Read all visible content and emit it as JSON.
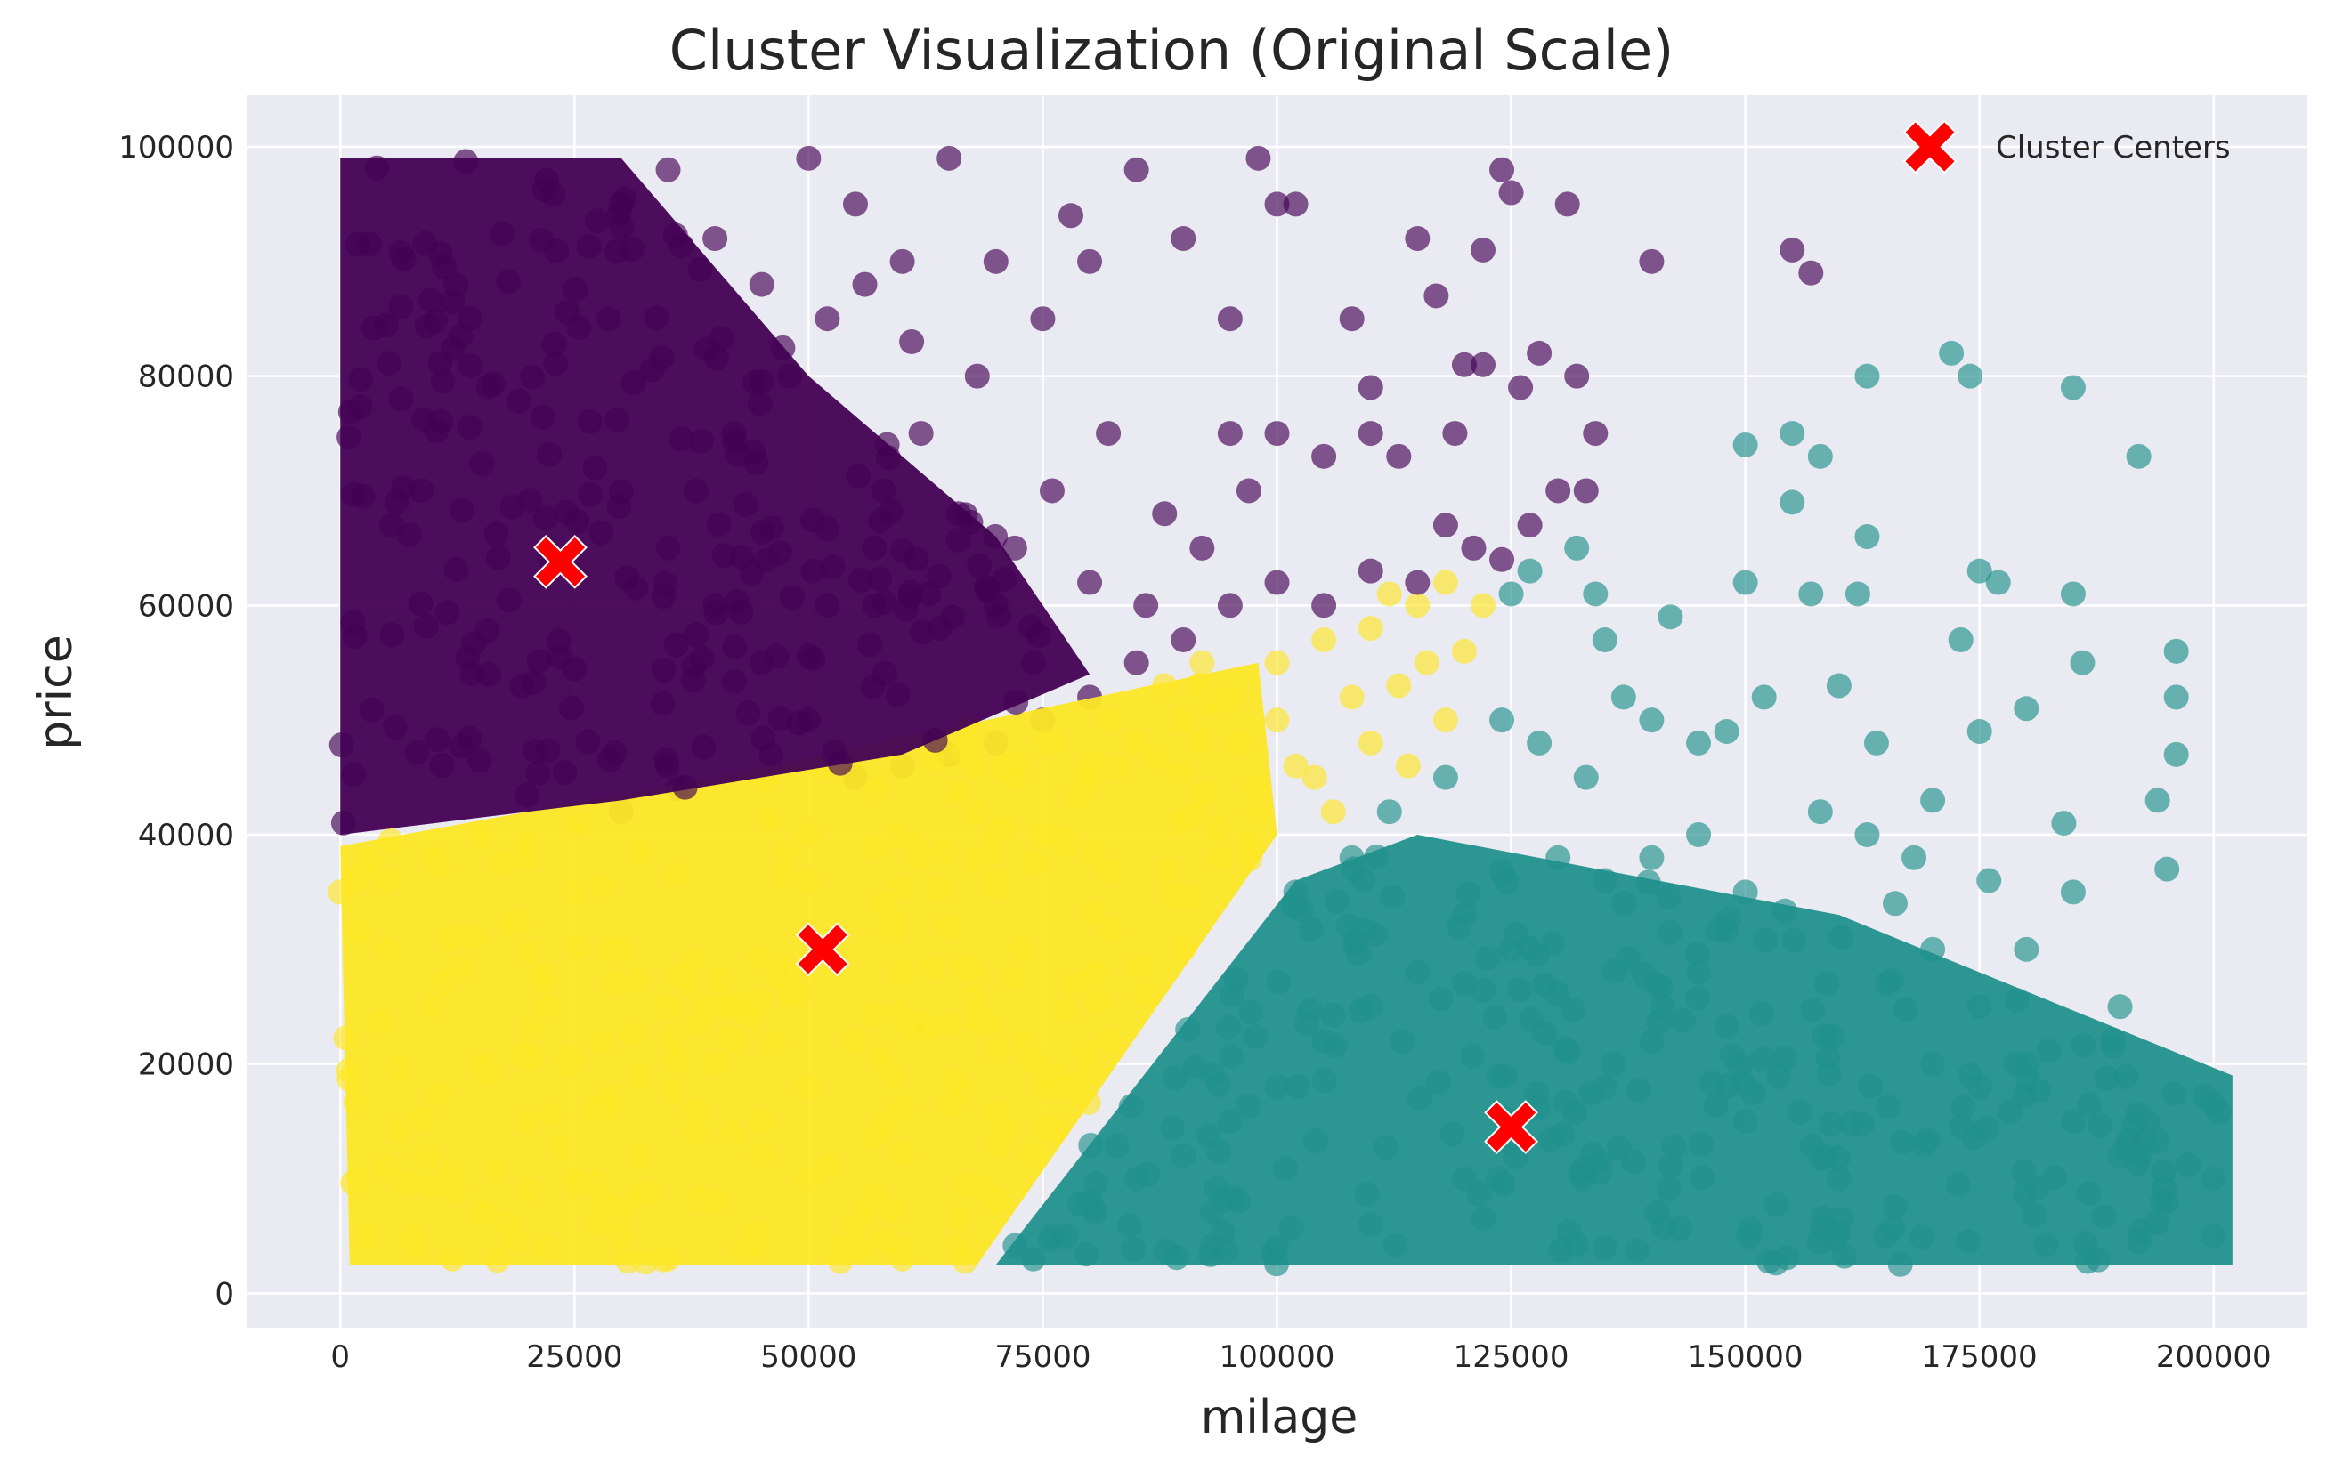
{
  "chart_data": {
    "type": "scatter",
    "title": "Cluster Visualization (Original Scale)",
    "xlabel": "milage",
    "ylabel": "price",
    "xlim": [
      -10000,
      210000
    ],
    "ylim": [
      -3000,
      104500
    ],
    "xticks": [
      0,
      25000,
      50000,
      75000,
      100000,
      125000,
      150000,
      175000,
      200000
    ],
    "yticks": [
      0,
      20000,
      40000,
      60000,
      80000,
      100000
    ],
    "grid": true,
    "legend": {
      "position": "top-right",
      "entries": [
        "Cluster Centers"
      ]
    },
    "colors": {
      "background": "#eaeaf2",
      "grid": "#ffffff",
      "cluster_0": "#440154",
      "cluster_1": "#21918c",
      "cluster_2": "#fde725",
      "centers": "#ff0000"
    },
    "centers": [
      {
        "x": 23500,
        "y": 63800
      },
      {
        "x": 51500,
        "y": 30000
      },
      {
        "x": 125000,
        "y": 14500
      }
    ],
    "series": [
      {
        "cluster": 0,
        "color": "#440154",
        "description": "dense region mileage 0–35000, price 40000–99000, sparser to ~135000",
        "points": [
          [
            30000,
            95000
          ],
          [
            35000,
            98000
          ],
          [
            40000,
            92000
          ],
          [
            45000,
            88000
          ],
          [
            50000,
            99000
          ],
          [
            55000,
            95000
          ],
          [
            60000,
            90000
          ],
          [
            65000,
            99000
          ],
          [
            70000,
            90000
          ],
          [
            75000,
            85000
          ],
          [
            78000,
            94000
          ],
          [
            80000,
            90000
          ],
          [
            85000,
            98000
          ],
          [
            90000,
            92000
          ],
          [
            95000,
            85000
          ],
          [
            98000,
            99000
          ],
          [
            100000,
            95000
          ],
          [
            102000,
            95000
          ],
          [
            108000,
            85000
          ],
          [
            115000,
            92000
          ],
          [
            117000,
            87000
          ],
          [
            122000,
            91000
          ],
          [
            124000,
            98000
          ],
          [
            125000,
            96000
          ],
          [
            131000,
            95000
          ],
          [
            140000,
            90000
          ],
          [
            155000,
            91000
          ],
          [
            157000,
            89000
          ],
          [
            110000,
            79000
          ],
          [
            120000,
            81000
          ],
          [
            126000,
            79000
          ],
          [
            128000,
            82000
          ],
          [
            132000,
            80000
          ],
          [
            134000,
            75000
          ],
          [
            119000,
            75000
          ],
          [
            122000,
            81000
          ],
          [
            110000,
            75000
          ],
          [
            105000,
            73000
          ],
          [
            100000,
            75000
          ],
          [
            95000,
            75000
          ],
          [
            113000,
            73000
          ],
          [
            118000,
            67000
          ],
          [
            121000,
            65000
          ],
          [
            124000,
            64000
          ],
          [
            127000,
            67000
          ],
          [
            130000,
            70000
          ],
          [
            133000,
            70000
          ],
          [
            115000,
            62000
          ],
          [
            110000,
            63000
          ],
          [
            105000,
            60000
          ],
          [
            100000,
            62000
          ],
          [
            95000,
            60000
          ],
          [
            90000,
            57000
          ],
          [
            85000,
            55000
          ],
          [
            80000,
            52000
          ],
          [
            75000,
            50000
          ],
          [
            70000,
            48000
          ],
          [
            65000,
            47000
          ],
          [
            60000,
            46000
          ],
          [
            55000,
            45000
          ],
          [
            45000,
            55000
          ],
          [
            40000,
            60000
          ],
          [
            35000,
            65000
          ],
          [
            38000,
            70000
          ],
          [
            42000,
            75000
          ],
          [
            48000,
            80000
          ],
          [
            52000,
            85000
          ],
          [
            58000,
            70000
          ],
          [
            62000,
            75000
          ],
          [
            68000,
            80000
          ],
          [
            72000,
            65000
          ],
          [
            76000,
            70000
          ],
          [
            82000,
            75000
          ],
          [
            88000,
            68000
          ],
          [
            92000,
            65000
          ],
          [
            97000,
            70000
          ],
          [
            50000,
            50000
          ],
          [
            46000,
            47000
          ],
          [
            36000,
            44000
          ],
          [
            30000,
            42000
          ],
          [
            52000,
            60000
          ],
          [
            57000,
            65000
          ],
          [
            64000,
            58000
          ],
          [
            70000,
            60000
          ],
          [
            74000,
            55000
          ],
          [
            80000,
            62000
          ],
          [
            86000,
            60000
          ],
          [
            66000,
            68000
          ],
          [
            61000,
            83000
          ],
          [
            56000,
            88000
          ]
        ]
      },
      {
        "cluster": 1,
        "color": "#21918c",
        "description": "dense region mileage 70000–202000, price 2000–40000, sparse up to ~82000",
        "points": [
          [
            125000,
            61000
          ],
          [
            127000,
            63000
          ],
          [
            132000,
            65000
          ],
          [
            134000,
            61000
          ],
          [
            135000,
            57000
          ],
          [
            137000,
            52000
          ],
          [
            140000,
            50000
          ],
          [
            142000,
            59000
          ],
          [
            145000,
            48000
          ],
          [
            148000,
            49000
          ],
          [
            150000,
            74000
          ],
          [
            152000,
            52000
          ],
          [
            155000,
            75000
          ],
          [
            155000,
            69000
          ],
          [
            158000,
            73000
          ],
          [
            150000,
            62000
          ],
          [
            157000,
            61000
          ],
          [
            162000,
            61000
          ],
          [
            163000,
            66000
          ],
          [
            160000,
            53000
          ],
          [
            163000,
            80000
          ],
          [
            172000,
            82000
          ],
          [
            174000,
            80000
          ],
          [
            185000,
            79000
          ],
          [
            192000,
            73000
          ],
          [
            164000,
            48000
          ],
          [
            170000,
            43000
          ],
          [
            175000,
            49000
          ],
          [
            180000,
            51000
          ],
          [
            185000,
            61000
          ],
          [
            175000,
            63000
          ],
          [
            177000,
            62000
          ],
          [
            186000,
            55000
          ],
          [
            196000,
            56000
          ],
          [
            196000,
            52000
          ],
          [
            194000,
            43000
          ],
          [
            196000,
            47000
          ],
          [
            195000,
            37000
          ],
          [
            184000,
            41000
          ],
          [
            173000,
            57000
          ],
          [
            170000,
            30000
          ],
          [
            175000,
            25000
          ],
          [
            180000,
            20000
          ],
          [
            185000,
            15000
          ],
          [
            190000,
            12000
          ],
          [
            195000,
            8000
          ],
          [
            200000,
            10000
          ],
          [
            200000,
            5000
          ],
          [
            190000,
            25000
          ],
          [
            185000,
            35000
          ],
          [
            180000,
            30000
          ],
          [
            176000,
            36000
          ],
          [
            166000,
            34000
          ],
          [
            168000,
            38000
          ],
          [
            163000,
            40000
          ],
          [
            158000,
            42000
          ],
          [
            150000,
            35000
          ],
          [
            145000,
            40000
          ],
          [
            140000,
            38000
          ],
          [
            135000,
            36000
          ],
          [
            130000,
            38000
          ],
          [
            125000,
            30000
          ],
          [
            120000,
            33000
          ],
          [
            115000,
            28000
          ],
          [
            110000,
            25000
          ],
          [
            105000,
            22000
          ],
          [
            100000,
            18000
          ],
          [
            95000,
            15000
          ],
          [
            90000,
            12000
          ],
          [
            85000,
            10000
          ],
          [
            80000,
            8000
          ],
          [
            76000,
            5000
          ],
          [
            74000,
            3000
          ],
          [
            102000,
            35000
          ],
          [
            108000,
            38000
          ],
          [
            112000,
            42000
          ],
          [
            118000,
            45000
          ],
          [
            124000,
            50000
          ],
          [
            128000,
            48000
          ],
          [
            133000,
            45000
          ],
          [
            140000,
            22000
          ],
          [
            150000,
            15000
          ],
          [
            160000,
            10000
          ],
          [
            165000,
            5000
          ],
          [
            170000,
            20000
          ],
          [
            145000,
            28000
          ],
          [
            135000,
            18000
          ],
          [
            120000,
            10000
          ],
          [
            110000,
            6000
          ],
          [
            100000,
            4000
          ]
        ]
      },
      {
        "cluster": 2,
        "color": "#fde725",
        "description": "dense region mileage 0–105000, price 2000–55000, wedge between clusters 0 and 1",
        "points": [
          [
            0,
            35000
          ],
          [
            5000,
            30000
          ],
          [
            10000,
            25000
          ],
          [
            15000,
            20000
          ],
          [
            20000,
            15000
          ],
          [
            25000,
            10000
          ],
          [
            30000,
            5000
          ],
          [
            35000,
            3000
          ],
          [
            40000,
            8000
          ],
          [
            45000,
            12000
          ],
          [
            50000,
            18000
          ],
          [
            55000,
            22000
          ],
          [
            60000,
            28000
          ],
          [
            65000,
            32000
          ],
          [
            70000,
            36000
          ],
          [
            75000,
            40000
          ],
          [
            80000,
            45000
          ],
          [
            85000,
            48000
          ],
          [
            90000,
            50000
          ],
          [
            95000,
            52000
          ],
          [
            100000,
            55000
          ],
          [
            105000,
            57000
          ],
          [
            110000,
            58000
          ],
          [
            112000,
            61000
          ],
          [
            115000,
            60000
          ],
          [
            118000,
            62000
          ],
          [
            120000,
            56000
          ],
          [
            108000,
            52000
          ],
          [
            102000,
            46000
          ],
          [
            98000,
            42000
          ],
          [
            94000,
            38000
          ],
          [
            90000,
            30000
          ],
          [
            86000,
            26000
          ],
          [
            82000,
            22000
          ],
          [
            78000,
            18000
          ],
          [
            74000,
            12000
          ],
          [
            70000,
            8000
          ],
          [
            66000,
            4000
          ],
          [
            60000,
            3000
          ],
          [
            55000,
            6000
          ],
          [
            50000,
            10000
          ],
          [
            45000,
            15000
          ],
          [
            40000,
            20000
          ],
          [
            35000,
            25000
          ],
          [
            30000,
            30000
          ],
          [
            25000,
            35000
          ],
          [
            20000,
            38000
          ],
          [
            15000,
            40000
          ],
          [
            10000,
            38000
          ],
          [
            5000,
            36000
          ],
          [
            2000,
            10000
          ],
          [
            3000,
            5000
          ],
          [
            8000,
            4000
          ],
          [
            12000,
            3000
          ],
          [
            18000,
            6000
          ],
          [
            22000,
            4000
          ],
          [
            28000,
            8000
          ],
          [
            32000,
            12000
          ],
          [
            38000,
            16000
          ],
          [
            42000,
            22000
          ],
          [
            48000,
            26000
          ],
          [
            52000,
            30000
          ],
          [
            58000,
            34000
          ],
          [
            62000,
            38000
          ],
          [
            68000,
            42000
          ],
          [
            72000,
            45000
          ],
          [
            76000,
            48000
          ],
          [
            82000,
            50000
          ],
          [
            88000,
            53000
          ],
          [
            92000,
            55000
          ],
          [
            96000,
            48000
          ],
          [
            100000,
            50000
          ],
          [
            104000,
            45000
          ],
          [
            106000,
            42000
          ],
          [
            110000,
            48000
          ],
          [
            113000,
            53000
          ],
          [
            116000,
            55000
          ],
          [
            118000,
            50000
          ],
          [
            122000,
            60000
          ],
          [
            114000,
            46000
          ]
        ]
      }
    ]
  }
}
